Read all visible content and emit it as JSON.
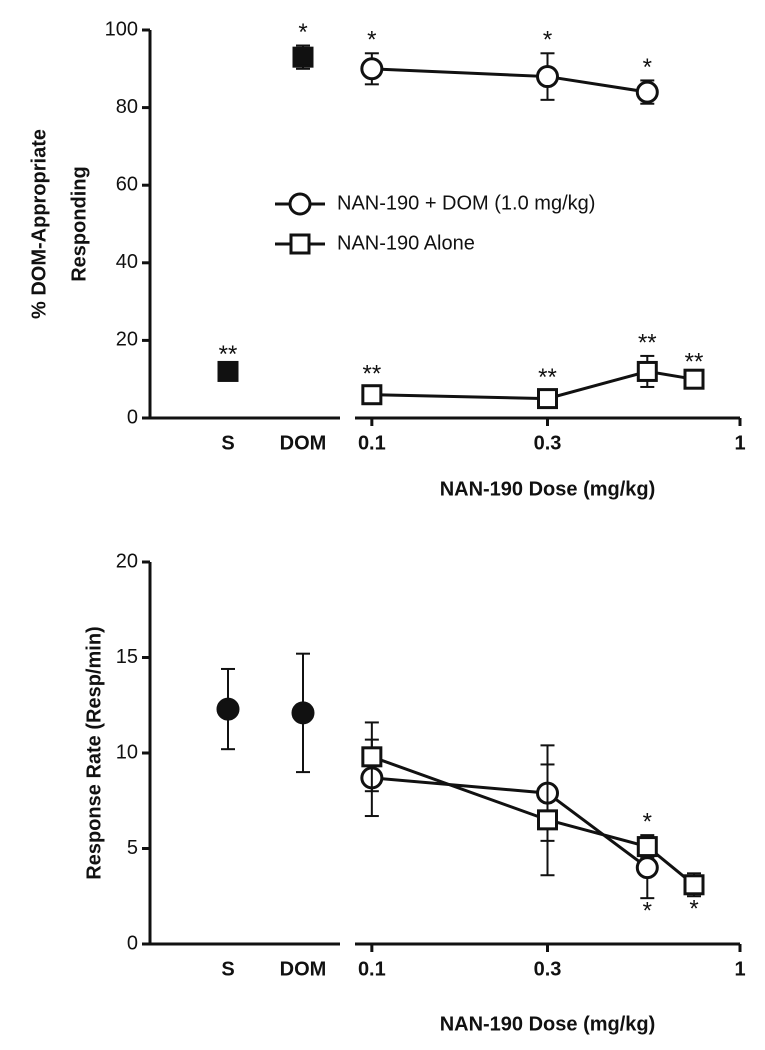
{
  "chart_data": [
    {
      "type": "line",
      "ylabel": [
        "% DOM-Appropriate",
        "Responding"
      ],
      "xlabel": "NAN-190 Dose (mg/kg)",
      "ylim": [
        0,
        100
      ],
      "yticks": [
        0,
        20,
        40,
        60,
        80,
        100
      ],
      "xlim": [
        0.09,
        1
      ],
      "xticks": [
        0.1,
        0.3,
        1
      ],
      "log_x": true,
      "legend": "center-right",
      "controls": {
        "categories": [
          "S",
          "DOM"
        ],
        "values": [
          12,
          93
        ],
        "errors": [
          1,
          3
        ],
        "labels": [
          "**",
          "*"
        ],
        "label_position": [
          "above",
          "above"
        ],
        "marker": "square"
      },
      "series": [
        {
          "name": "NAN-190 + DOM (1.0 mg/kg)",
          "marker": "circle",
          "x": [
            0.1,
            0.3,
            0.56
          ],
          "values": [
            90,
            88,
            84
          ],
          "errors": [
            4,
            6,
            3
          ],
          "labels": [
            "*",
            "*",
            "*"
          ],
          "label_position": [
            "above",
            "above",
            "above"
          ]
        },
        {
          "name": "NAN-190 Alone",
          "marker": "square",
          "x": [
            0.1,
            0.3,
            0.56,
            0.75
          ],
          "values": [
            6,
            5,
            12,
            10
          ],
          "errors": [
            2,
            2,
            4,
            1
          ],
          "labels": [
            "**",
            "**",
            "**",
            "**"
          ],
          "label_position": [
            "above",
            "above",
            "above",
            "above"
          ]
        }
      ]
    },
    {
      "type": "line",
      "ylabel": [
        "Response Rate (Resp/min)"
      ],
      "xlabel": "NAN-190 Dose (mg/kg)",
      "ylim": [
        0,
        20
      ],
      "yticks": [
        0,
        5,
        10,
        15,
        20
      ],
      "xlim": [
        0.09,
        1
      ],
      "xticks": [
        0.1,
        0.3,
        1
      ],
      "log_x": true,
      "controls": {
        "categories": [
          "S",
          "DOM"
        ],
        "values": [
          12.3,
          12.1
        ],
        "errors": [
          2.1,
          3.1
        ],
        "marker": "circle"
      },
      "series": [
        {
          "marker": "circle",
          "x": [
            0.1,
            0.3,
            0.56
          ],
          "values": [
            8.7,
            7.9,
            4.0
          ],
          "errors": [
            2.0,
            2.5,
            1.6
          ],
          "labels": [
            null,
            null,
            "*"
          ],
          "label_position": [
            null,
            null,
            "below"
          ]
        },
        {
          "marker": "square",
          "x": [
            0.1,
            0.3,
            0.56,
            0.75
          ],
          "values": [
            9.8,
            6.5,
            5.1,
            3.1
          ],
          "errors": [
            1.8,
            2.9,
            0.6,
            0.6
          ],
          "labels": [
            null,
            null,
            "*",
            "*"
          ],
          "label_position": [
            null,
            null,
            "above",
            "below"
          ]
        }
      ]
    }
  ]
}
